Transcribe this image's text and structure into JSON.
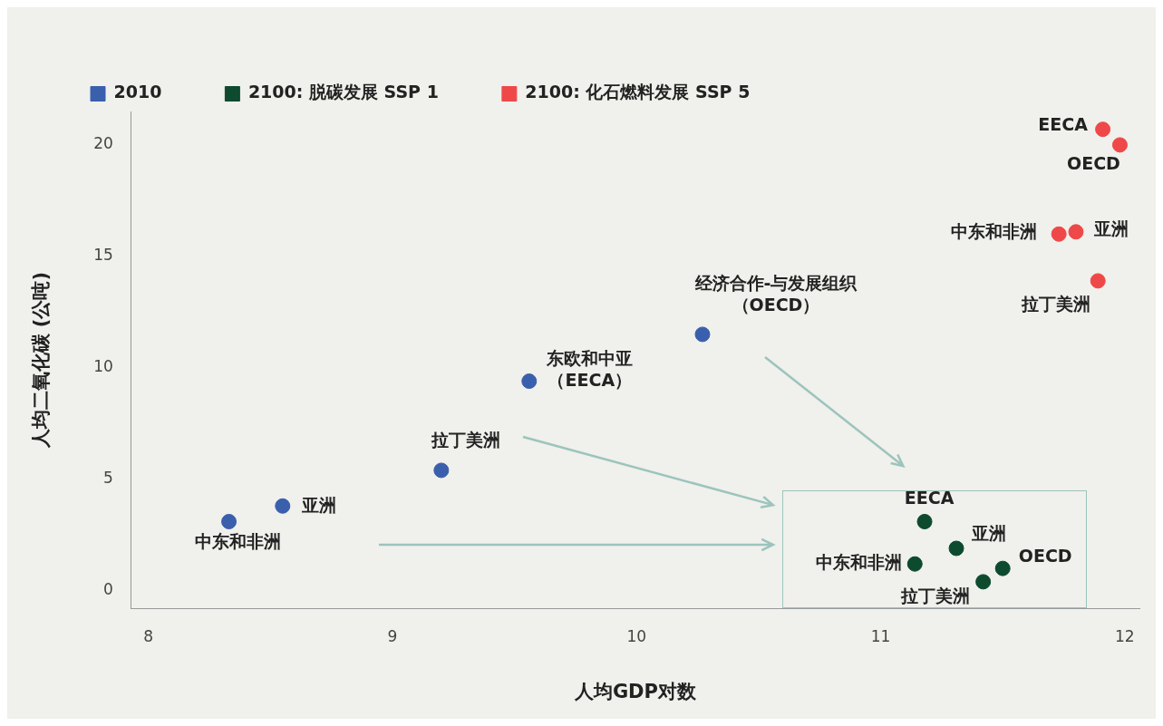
{
  "chart_data": {
    "type": "scatter",
    "xlabel": "人均GDP对数",
    "ylabel": "人均二氧化碳 (公吨)",
    "xlim": [
      7.93,
      12.06
    ],
    "ylim": [
      -0.8,
      21.5
    ],
    "xticks": [
      8,
      9,
      10,
      11,
      12
    ],
    "yticks": [
      0,
      5,
      10,
      15,
      20
    ],
    "grid": false,
    "legend": "top left",
    "marker": "circle",
    "series": [
      {
        "name": "2010",
        "color": "#3a5fad",
        "x": [
          8.33,
          8.55,
          9.2,
          9.56,
          10.27
        ],
        "values": [
          3.1,
          3.8,
          5.4,
          9.4,
          11.5
        ]
      },
      {
        "name": "2100: 脱碳发展 SSP 1",
        "color": "#0d4a2e",
        "x": [
          11.18,
          11.31,
          11.14,
          11.5,
          11.42
        ],
        "values": [
          3.1,
          1.9,
          1.2,
          1.0,
          0.4
        ]
      },
      {
        "name": "2100: 化石燃料发展 SSP 5",
        "color": "#ef4848",
        "x": [
          11.91,
          11.98,
          11.73,
          11.8,
          11.89
        ],
        "values": [
          20.7,
          20.0,
          16.0,
          16.1,
          13.9
        ]
      }
    ],
    "annotations": [
      {
        "text": "中东和非洲",
        "x": 8.33,
        "y": 3.1
      },
      {
        "text": "亚洲",
        "x": 8.55,
        "y": 3.8
      },
      {
        "text": "拉丁美洲",
        "x": 9.2,
        "y": 5.4
      },
      {
        "text": "东欧和中亚（EECA）",
        "x": 9.56,
        "y": 9.4
      },
      {
        "text": "经济合作-与发展组织（OECD）",
        "x": 10.27,
        "y": 11.5
      },
      {
        "text": "EECA",
        "x": 11.18,
        "y": 3.1
      },
      {
        "text": "亚洲",
        "x": 11.31,
        "y": 1.9
      },
      {
        "text": "中东和非洲",
        "x": 11.14,
        "y": 1.2
      },
      {
        "text": "OECD",
        "x": 11.5,
        "y": 1.0
      },
      {
        "text": "拉丁美洲",
        "x": 11.42,
        "y": 0.4
      },
      {
        "text": "EECA",
        "x": 11.91,
        "y": 20.7
      },
      {
        "text": "OECD",
        "x": 11.98,
        "y": 20.0
      },
      {
        "text": "中东和非洲",
        "x": 11.73,
        "y": 16.0
      },
      {
        "text": "亚洲",
        "x": 11.8,
        "y": 16.1
      },
      {
        "text": "拉丁美洲",
        "x": 11.89,
        "y": 13.9
      }
    ]
  }
}
